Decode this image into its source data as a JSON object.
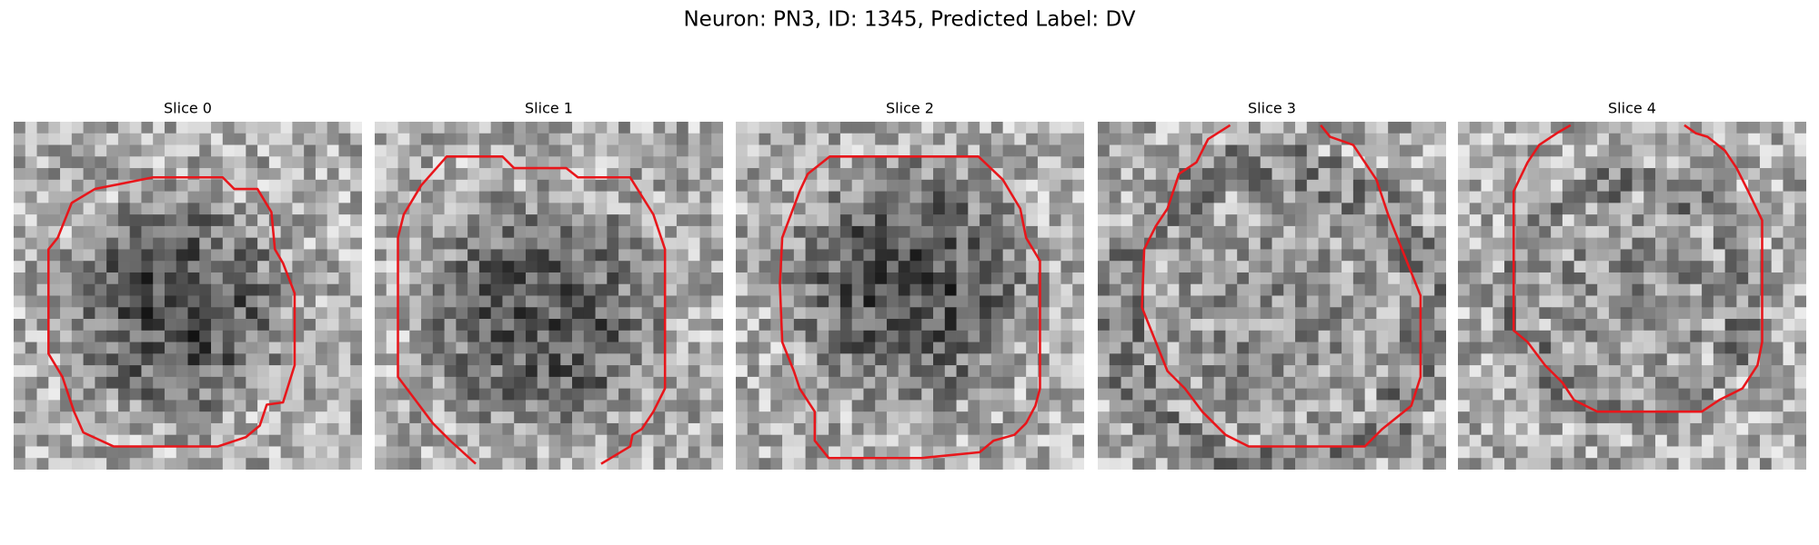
{
  "title": "Neuron: PN3, ID: 1345, Predicted Label: DV",
  "panels": [
    {
      "title": "Slice 0"
    },
    {
      "title": "Slice 1"
    },
    {
      "title": "Slice 2"
    },
    {
      "title": "Slice 3"
    },
    {
      "title": "Slice 4"
    }
  ]
}
